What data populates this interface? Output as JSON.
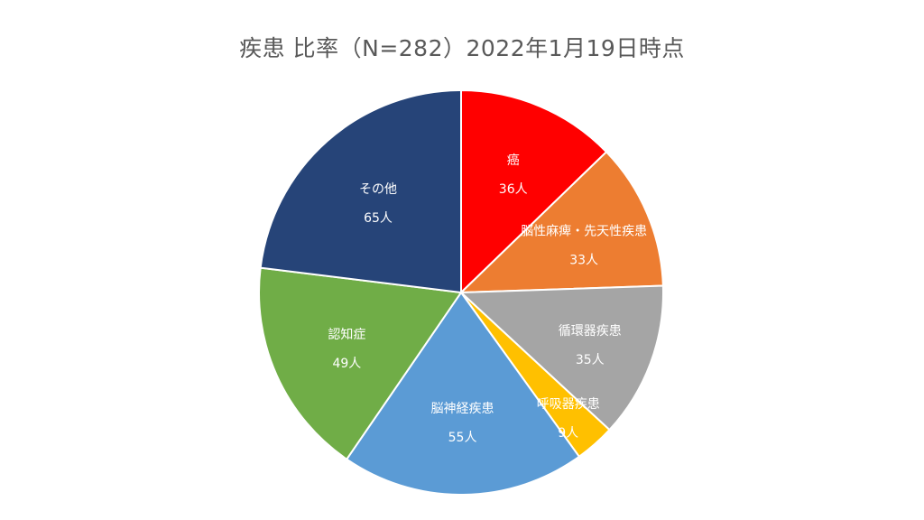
{
  "chart_data": {
    "type": "pie",
    "title": "疾患 比率（N=282）2022年1月19日時点",
    "unit": "人",
    "start_angle_deg": 0,
    "direction": "clockwise",
    "legend": "none",
    "slices": [
      {
        "label": "癌",
        "value": 36,
        "value_label": "36人",
        "color": "#FF0000"
      },
      {
        "label": "脳性麻痺・先天性疾患",
        "value": 33,
        "value_label": "33人",
        "color": "#ED7D31"
      },
      {
        "label": "循環器疾患",
        "value": 35,
        "value_label": "35人",
        "color": "#A5A5A5"
      },
      {
        "label": "呼吸器疾患",
        "value": 9,
        "value_label": "9人",
        "color": "#FFC000"
      },
      {
        "label": "脳神経疾患",
        "value": 55,
        "value_label": "55人",
        "color": "#5B9BD5"
      },
      {
        "label": "認知症",
        "value": 49,
        "value_label": "49人",
        "color": "#70AD47"
      },
      {
        "label": "その他",
        "value": 65,
        "value_label": "65人",
        "color": "#264478"
      }
    ]
  }
}
